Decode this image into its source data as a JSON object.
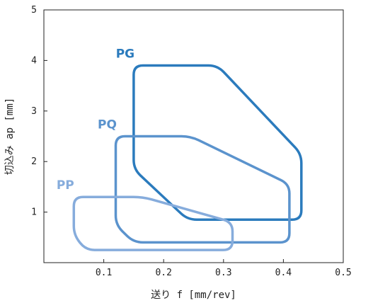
{
  "chart_data": {
    "type": "area",
    "xlabel": "送り f [mm/rev]",
    "ylabel": "切込み ap [mm]",
    "xlim": [
      0,
      0.5
    ],
    "ylim": [
      0,
      5
    ],
    "xticks": [
      "0.1",
      "0.2",
      "0.3",
      "0.4",
      "0.5"
    ],
    "yticks": [
      "1",
      "2",
      "3",
      "4",
      "5"
    ],
    "grid": false,
    "series": [
      {
        "name": "PG",
        "color": "#2b7bbd",
        "vertices": [
          [
            0.15,
            3.9
          ],
          [
            0.29,
            3.9
          ],
          [
            0.43,
            2.15
          ],
          [
            0.43,
            0.85
          ],
          [
            0.24,
            0.85
          ],
          [
            0.15,
            1.85
          ]
        ]
      },
      {
        "name": "PQ",
        "color": "#5b93cd",
        "vertices": [
          [
            0.12,
            2.5
          ],
          [
            0.245,
            2.5
          ],
          [
            0.41,
            1.55
          ],
          [
            0.41,
            0.4
          ],
          [
            0.15,
            0.4
          ],
          [
            0.12,
            0.75
          ]
        ]
      },
      {
        "name": "PP",
        "color": "#86acdc",
        "vertices": [
          [
            0.05,
            1.3
          ],
          [
            0.165,
            1.3
          ],
          [
            0.315,
            0.8
          ],
          [
            0.315,
            0.25
          ],
          [
            0.07,
            0.25
          ],
          [
            0.05,
            0.55
          ]
        ]
      }
    ]
  }
}
